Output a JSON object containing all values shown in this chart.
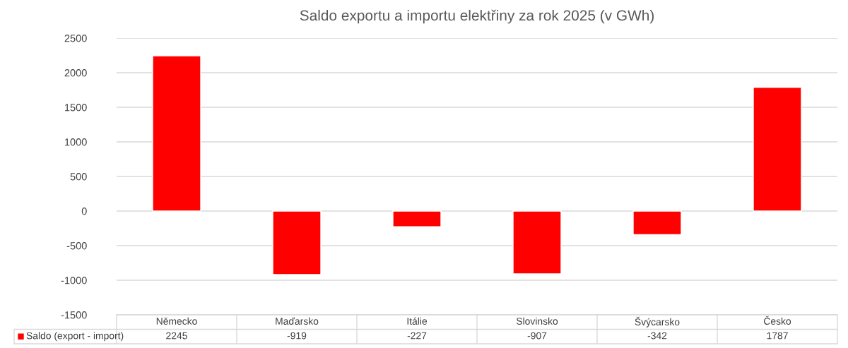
{
  "chart_data": {
    "type": "bar",
    "title": "Saldo exportu a importu elektřiny za rok 2025 (v GWh)",
    "categories": [
      "Německo",
      "Maďarsko",
      "Itálie",
      "Slovinsko",
      "Švýcarsko",
      "Česko"
    ],
    "series": [
      {
        "name": "Saldo (export - import)",
        "color": "#ff0000",
        "values": [
          2245,
          -919,
          -227,
          -907,
          -342,
          1787
        ]
      }
    ],
    "ylim": [
      -1500,
      2500
    ],
    "yticks": [
      -1500,
      -1000,
      -500,
      0,
      500,
      1000,
      1500,
      2000,
      2500
    ],
    "grid": "y",
    "data_labels": true,
    "legend": "bottom"
  }
}
